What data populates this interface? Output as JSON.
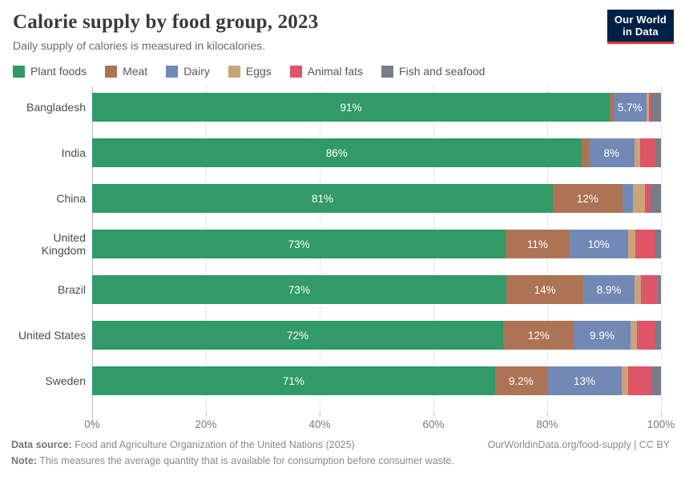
{
  "header": {
    "title": "Calorie supply by food group, 2023",
    "subtitle": "Daily supply of calories is measured in kilocalories."
  },
  "logo": {
    "line1": "Our World",
    "line2": "in Data",
    "bg_color": "#002147",
    "accent_color": "#e0373f"
  },
  "legend": {
    "items": [
      {
        "label": "Plant foods",
        "color": "#319a66"
      },
      {
        "label": "Meat",
        "color": "#ad7355"
      },
      {
        "label": "Dairy",
        "color": "#7289b5"
      },
      {
        "label": "Eggs",
        "color": "#c9a47b"
      },
      {
        "label": "Animal fats",
        "color": "#dd5566"
      },
      {
        "label": "Fish and seafood",
        "color": "#777d89"
      }
    ]
  },
  "chart_data": {
    "type": "bar",
    "stacked": true,
    "orientation": "horizontal",
    "title": "Calorie supply by food group, 2023",
    "unit": "%",
    "xlabel": "",
    "ylabel": "",
    "xlim": [
      0,
      100
    ],
    "grid": "vertical-dashed",
    "legend_position": "top",
    "categories": [
      "Bangladesh",
      "India",
      "China",
      "United Kingdom",
      "Brazil",
      "United States",
      "Sweden"
    ],
    "series": [
      {
        "name": "Plant foods",
        "color": "#319a66",
        "values": [
          91,
          86,
          81,
          72.7,
          72.8,
          72.3,
          70.8
        ],
        "labels": [
          "91%",
          "86%",
          "81%",
          "73%",
          "73%",
          "72%",
          "71%"
        ]
      },
      {
        "name": "Meat",
        "color": "#ad7355",
        "values": [
          0.7,
          1.3,
          12.2,
          11.2,
          13.6,
          12.4,
          9.2
        ],
        "labels": [
          "",
          "",
          "12%",
          "11%",
          "14%",
          "12%",
          "9.2%"
        ]
      },
      {
        "name": "Dairy",
        "color": "#7289b5",
        "values": [
          5.7,
          8,
          1.9,
          10.3,
          8.9,
          9.9,
          13.1
        ],
        "labels": [
          "5.7%",
          "8%",
          "",
          "10%",
          "8.9%",
          "9.9%",
          "13%"
        ]
      },
      {
        "name": "Eggs",
        "color": "#c9a47b",
        "values": [
          0.5,
          1.0,
          2.1,
          1.3,
          1.2,
          1.2,
          1.1
        ],
        "labels": [
          "",
          "",
          "",
          "",
          "",
          "",
          ""
        ]
      },
      {
        "name": "Animal fats",
        "color": "#dd5566",
        "values": [
          0.4,
          2.8,
          1.0,
          3.5,
          3.0,
          3.2,
          4.3
        ],
        "labels": [
          "",
          "",
          "",
          "",
          "",
          "",
          ""
        ]
      },
      {
        "name": "Fish and seafood",
        "color": "#777d89",
        "values": [
          1.7,
          0.9,
          1.8,
          1.0,
          0.5,
          1.0,
          1.5
        ],
        "labels": [
          "",
          "",
          "",
          "",
          "",
          "",
          ""
        ]
      }
    ],
    "xticks": [
      {
        "value": 0,
        "label": "0%"
      },
      {
        "value": 20,
        "label": "20%"
      },
      {
        "value": 40,
        "label": "40%"
      },
      {
        "value": 60,
        "label": "60%"
      },
      {
        "value": 80,
        "label": "80%"
      },
      {
        "value": 100,
        "label": "100%"
      }
    ]
  },
  "footer": {
    "data_source_label": "Data source:",
    "data_source_text": " Food and Agriculture Organization of the United Nations (2025)",
    "attribution": "OurWorldinData.org/food-supply | CC BY",
    "note_label": "Note:",
    "note_text": " This measures the average quantity that is available for consumption before consumer waste."
  }
}
